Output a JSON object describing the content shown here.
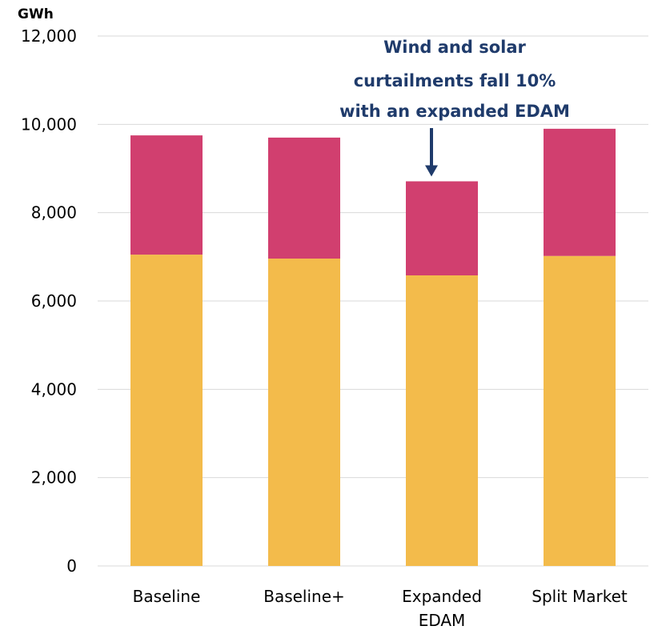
{
  "chart_data": {
    "type": "bar",
    "stacked": true,
    "ylabel": "GWh",
    "ylim": [
      0,
      12000
    ],
    "yticks": [
      "0",
      "2,000",
      "4,000",
      "6,000",
      "8,000",
      "10,000",
      "12,000"
    ],
    "ytick_values": [
      0,
      2000,
      4000,
      6000,
      8000,
      10000,
      12000
    ],
    "grid": true,
    "categories": [
      "Baseline",
      "Baseline+",
      "Expanded\nEDAM",
      "Split Market"
    ],
    "series": [
      {
        "values": [
          7050,
          6960,
          6580,
          7020
        ],
        "color": "#f3bb4b"
      },
      {
        "values": [
          2700,
          2740,
          2130,
          2880
        ],
        "color": "#d13f6f"
      }
    ],
    "annotation": {
      "lines": [
        "Wind and solar",
        "curtailments fall 10%",
        "with an expanded EDAM"
      ],
      "target_category": "Expanded\nEDAM",
      "color": "#1f3b6b"
    }
  }
}
